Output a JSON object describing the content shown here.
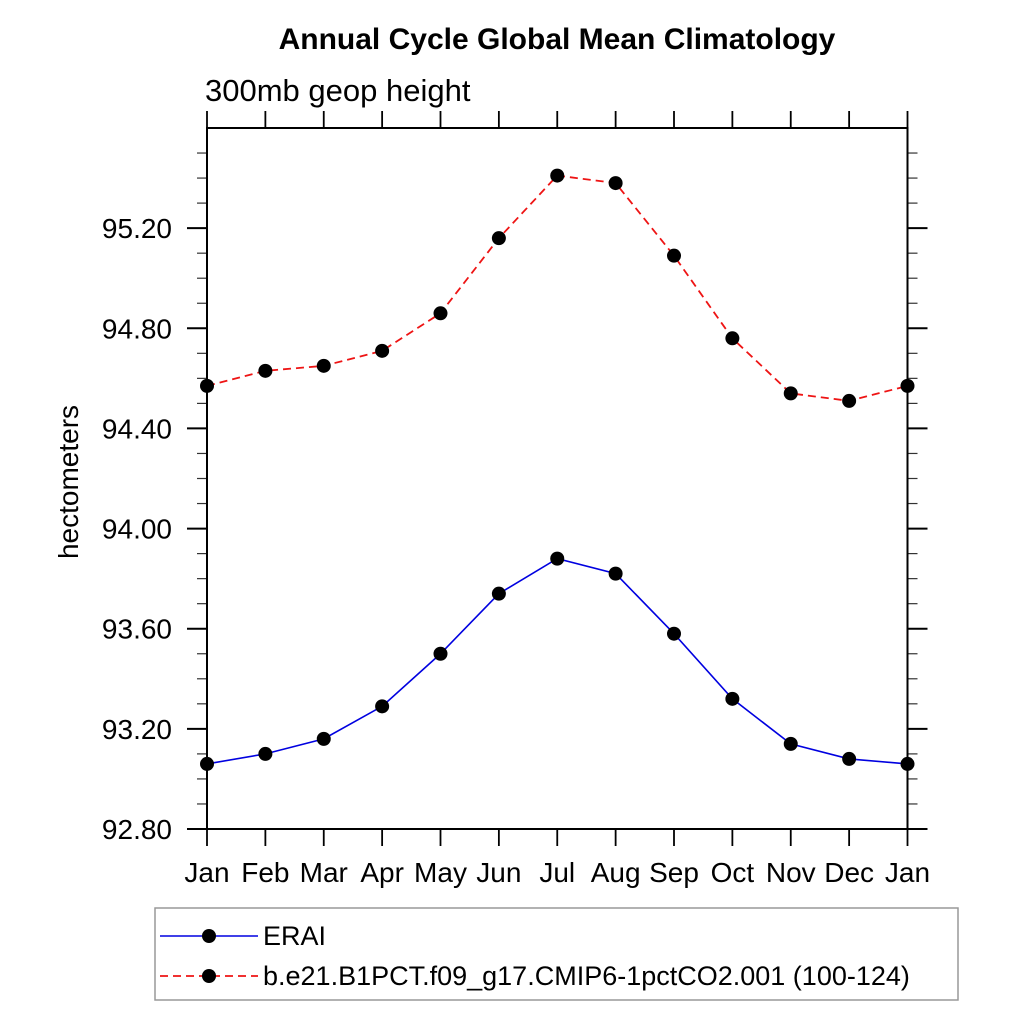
{
  "title": "Annual Cycle Global Mean Climatology",
  "subtitle": "300mb geop height",
  "y_axis_label": "hectometers",
  "chart_data": {
    "type": "line",
    "x_categories": [
      "Jan",
      "Feb",
      "Mar",
      "Apr",
      "May",
      "Jun",
      "Jul",
      "Aug",
      "Sep",
      "Oct",
      "Nov",
      "Dec",
      "Jan"
    ],
    "ylim": [
      92.8,
      95.6
    ],
    "y_major_ticks": [
      92.8,
      93.2,
      93.6,
      94.0,
      94.4,
      94.8,
      95.2
    ],
    "y_minor_step": 0.1,
    "y_tick_label_format": "0.00",
    "grid": false,
    "legend_position": "below-left",
    "marker": "filled-circle",
    "marker_color": "#000000",
    "series": [
      {
        "name": "ERAI",
        "color": "#0000e0",
        "line_style": "solid",
        "values": [
          93.06,
          93.1,
          93.16,
          93.29,
          93.5,
          93.74,
          93.88,
          93.82,
          93.58,
          93.32,
          93.14,
          93.08,
          93.06
        ]
      },
      {
        "name": "b.e21.B1PCT.f09_g17.CMIP6-1pctCO2.001 (100-124)",
        "color": "#ee1414",
        "line_style": "dashed",
        "values": [
          94.57,
          94.63,
          94.65,
          94.71,
          94.86,
          95.16,
          95.41,
          95.38,
          95.09,
          94.76,
          94.54,
          94.51,
          94.57
        ]
      }
    ]
  }
}
